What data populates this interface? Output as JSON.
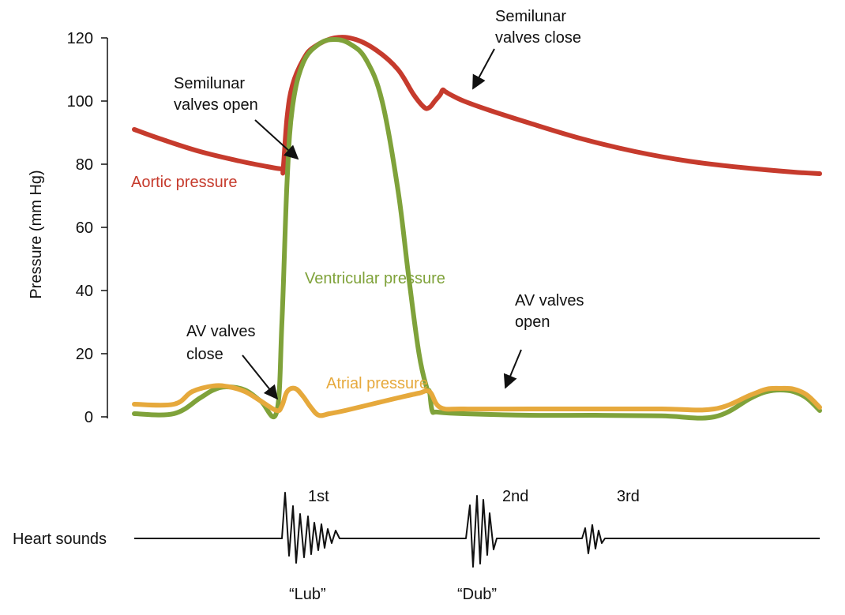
{
  "chart_data": {
    "type": "line",
    "ylabel": "Pressure (mm Hg)",
    "ylim": [
      0,
      120
    ],
    "yticks": [
      "0",
      "20",
      "40",
      "60",
      "80",
      "100",
      "120"
    ],
    "grid": false,
    "series": [
      {
        "name": "Aortic pressure",
        "color": "#c63b2d",
        "x": [
          0,
          10,
          25,
          40,
          52,
          56,
          56.5,
          58,
          60,
          64,
          68,
          76,
          84,
          92,
          100,
          106,
          110,
          112,
          114,
          116,
          117,
          118,
          120,
          125,
          135,
          150,
          170,
          190,
          210,
          230,
          250,
          260
        ],
        "y": [
          91,
          88,
          84,
          81,
          79,
          78.5,
          78.5,
          95,
          105,
          113,
          117,
          120,
          119.5,
          116,
          110,
          102,
          98,
          98,
          100,
          102,
          103.5,
          103,
          102,
          100,
          97,
          93,
          88,
          84,
          81,
          79,
          77.5,
          77
        ]
      },
      {
        "name": "Ventricular pressure",
        "color": "#7fa23a",
        "x": [
          0,
          15,
          25,
          30,
          35,
          42,
          48,
          54,
          56,
          58,
          60,
          64,
          70,
          76,
          82,
          88,
          94,
          100,
          104,
          108,
          111,
          112,
          113,
          115,
          125,
          150,
          175,
          200,
          220,
          234,
          240,
          245,
          250,
          255,
          260
        ],
        "y": [
          1,
          1,
          6,
          8.5,
          9.5,
          8.5,
          5,
          1.5,
          30,
          75,
          98,
          112,
          118,
          119.5,
          118,
          113,
          100,
          72,
          45,
          20,
          9,
          8,
          2,
          1.5,
          1,
          0.5,
          0.5,
          0.3,
          0,
          6,
          8,
          8.5,
          8,
          6,
          2
        ]
      },
      {
        "name": "Atrial pressure",
        "color": "#e6a93c",
        "x": [
          0,
          15,
          22,
          30,
          36,
          42,
          48,
          54,
          56,
          58,
          61,
          64,
          67,
          70,
          74,
          80,
          90,
          100,
          108,
          112,
          116,
          125,
          150,
          175,
          200,
          220,
          234,
          240,
          245,
          250,
          255,
          260
        ],
        "y": [
          4,
          4,
          8,
          9.8,
          9.5,
          8,
          5,
          2,
          3.5,
          8,
          9,
          6.5,
          3,
          0.5,
          1,
          2,
          4,
          6,
          7.5,
          8,
          3,
          2.5,
          2.5,
          2.5,
          2.5,
          2.5,
          7,
          8.8,
          9,
          8.8,
          7,
          3
        ]
      }
    ],
    "annotations": [
      {
        "lines": [
          "Semilunar",
          "valves open"
        ]
      },
      {
        "lines": [
          "Semilunar",
          "valves close"
        ]
      },
      {
        "lines": [
          "AV valves",
          "close"
        ]
      },
      {
        "lines": [
          "AV valves",
          "open"
        ]
      }
    ],
    "heart_sounds": {
      "label": "Heart sounds",
      "sounds": [
        {
          "order": "1st",
          "word": "“Lub”"
        },
        {
          "order": "2nd",
          "word": "“Dub”"
        },
        {
          "order": "3rd",
          "word": ""
        }
      ]
    }
  }
}
